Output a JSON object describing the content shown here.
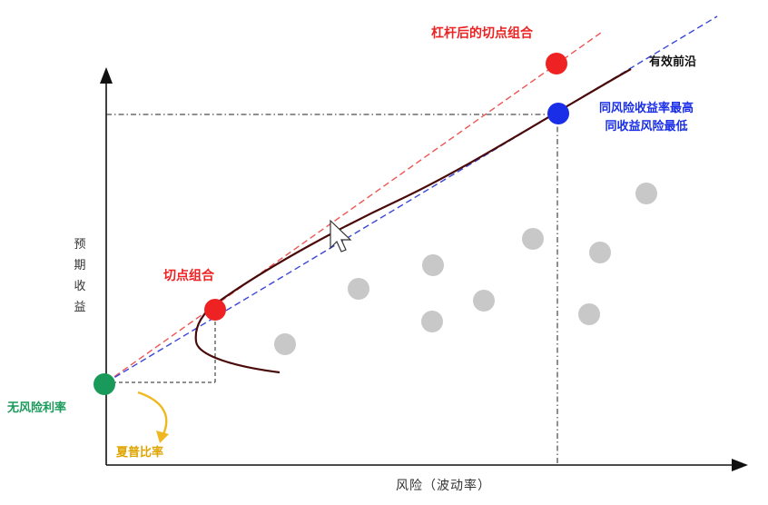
{
  "labels": {
    "levered_tangent": "杠杆后的切点组合",
    "efficient_frontier": "有效前沿",
    "same_risk_line1": "同风险收益率最高",
    "same_risk_line2": "同收益风险最低",
    "tangent_portfolio": "切点组合",
    "risk_free_rate": "无风险利率",
    "sharpe_ratio": "夏普比率",
    "y_axis": "预期收益",
    "x_axis": "风险（波动率）"
  },
  "colors": {
    "levered": "#ee2222",
    "tangent": "#ee2222",
    "efficient_point": "#1a2ee8",
    "risk_free": "#1a9a5a",
    "sharpe_arrow": "#f0b820",
    "frontier": "#4a0a0a",
    "assets": "#c8c8c8",
    "axis": "#111111"
  },
  "icons": {
    "cursor": "mouse-pointer-icon"
  }
}
